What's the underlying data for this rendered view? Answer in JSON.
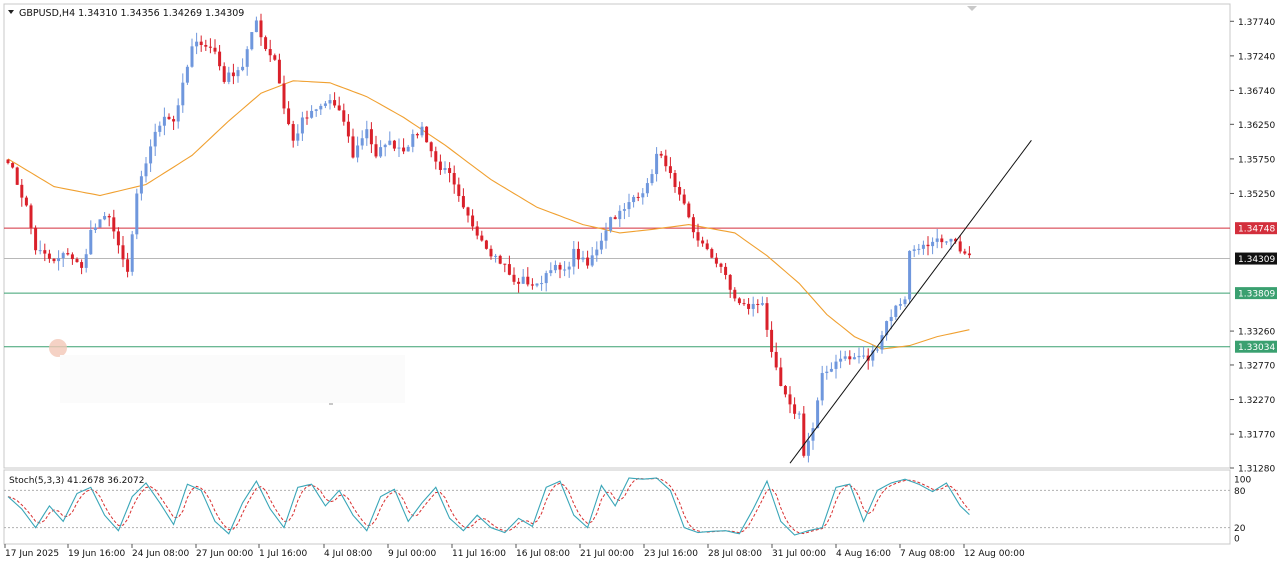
{
  "header": {
    "symbol_text": "GBPUSD,H4  1.34310 1.34356 1.34269 1.34309"
  },
  "colors": {
    "bull": "#6f97dd",
    "bear": "#d9202a",
    "ma": "#f0a030",
    "resistance": "#d32f3c",
    "support": "#3aa070",
    "current": "#b8b8b8",
    "stoch_main": "#3aa6b8",
    "stoch_signal": "#d83030"
  },
  "chart_data": [
    {
      "type": "candlestick",
      "symbol": "GBPUSD",
      "timeframe": "H4",
      "ohlc_header": {
        "open": 1.3431,
        "high": 1.34356,
        "low": 1.34269,
        "close": 1.34309
      },
      "ylim": [
        1.3128,
        1.3799
      ],
      "y_ticks": [
        "1.37740",
        "1.37240",
        "1.36740",
        "1.36250",
        "1.35750",
        "1.35250",
        "1.34748",
        "1.34309",
        "1.33809",
        "1.33260",
        "1.33034",
        "1.32770",
        "1.32270",
        "1.31770",
        "1.31280"
      ],
      "x_ticks": [
        "17 Jun 2025",
        "19 Jun 16:00",
        "24 Jun 08:00",
        "27 Jun 00:00",
        "1 Jul 16:00",
        "4 Jul 08:00",
        "9 Jul 00:00",
        "11 Jul 16:00",
        "16 Jul 08:00",
        "21 Jul 00:00",
        "23 Jul 16:00",
        "28 Jul 08:00",
        "31 Jul 00:00",
        "4 Aug 16:00",
        "7 Aug 08:00",
        "12 Aug 00:00"
      ],
      "price_levels": [
        {
          "label": "1.34748",
          "value": 1.34748,
          "kind": "resistance"
        },
        {
          "label": "1.34309",
          "value": 1.34309,
          "kind": "current"
        },
        {
          "label": "1.33809",
          "value": 1.33809,
          "kind": "support"
        },
        {
          "label": "1.33034",
          "value": 1.33034,
          "kind": "support"
        }
      ],
      "trendline": {
        "from": {
          "bar": 170,
          "price": 1.3135
        },
        "to": {
          "bar": 209,
          "price": 1.3518
        }
      },
      "moving_average": [
        [
          0,
          1.3575
        ],
        [
          10,
          1.3535
        ],
        [
          20,
          1.3522
        ],
        [
          30,
          1.3538
        ],
        [
          40,
          1.358
        ],
        [
          48,
          1.363
        ],
        [
          55,
          1.367
        ],
        [
          62,
          1.3688
        ],
        [
          70,
          1.3685
        ],
        [
          78,
          1.3665
        ],
        [
          86,
          1.3635
        ],
        [
          95,
          1.3595
        ],
        [
          105,
          1.3545
        ],
        [
          115,
          1.3505
        ],
        [
          125,
          1.348
        ],
        [
          133,
          1.3468
        ],
        [
          140,
          1.3473
        ],
        [
          148,
          1.348
        ],
        [
          158,
          1.3468
        ],
        [
          165,
          1.3435
        ],
        [
          172,
          1.3395
        ],
        [
          178,
          1.335
        ],
        [
          184,
          1.3318
        ],
        [
          190,
          1.33
        ],
        [
          196,
          1.3305
        ],
        [
          202,
          1.3318
        ],
        [
          209,
          1.3328
        ]
      ],
      "stoch_label": "Stoch(5,3,3) 41.2678 36.2072",
      "stoch_ticks": [
        "100",
        "80",
        "20",
        "0"
      ],
      "stoch_main_anchors": [
        [
          0,
          70
        ],
        [
          3,
          50
        ],
        [
          6,
          20
        ],
        [
          9,
          55
        ],
        [
          12,
          30
        ],
        [
          15,
          75
        ],
        [
          18,
          85
        ],
        [
          21,
          40
        ],
        [
          24,
          15
        ],
        [
          27,
          70
        ],
        [
          30,
          92
        ],
        [
          33,
          60
        ],
        [
          36,
          25
        ],
        [
          39,
          90
        ],
        [
          42,
          80
        ],
        [
          45,
          30
        ],
        [
          48,
          10
        ],
        [
          51,
          60
        ],
        [
          54,
          95
        ],
        [
          57,
          50
        ],
        [
          60,
          20
        ],
        [
          63,
          85
        ],
        [
          66,
          90
        ],
        [
          69,
          55
        ],
        [
          72,
          80
        ],
        [
          75,
          40
        ],
        [
          78,
          15
        ],
        [
          81,
          70
        ],
        [
          84,
          82
        ],
        [
          87,
          30
        ],
        [
          90,
          60
        ],
        [
          93,
          85
        ],
        [
          96,
          35
        ],
        [
          99,
          15
        ],
        [
          102,
          40
        ],
        [
          105,
          20
        ],
        [
          108,
          12
        ],
        [
          111,
          35
        ],
        [
          114,
          22
        ],
        [
          117,
          85
        ],
        [
          120,
          95
        ],
        [
          123,
          40
        ],
        [
          126,
          20
        ],
        [
          129,
          88
        ],
        [
          132,
          55
        ],
        [
          135,
          100
        ],
        [
          138,
          98
        ],
        [
          141,
          100
        ],
        [
          144,
          80
        ],
        [
          147,
          20
        ],
        [
          150,
          12
        ],
        [
          153,
          14
        ],
        [
          156,
          15
        ],
        [
          159,
          10
        ],
        [
          162,
          50
        ],
        [
          165,
          95
        ],
        [
          168,
          30
        ],
        [
          171,
          8
        ],
        [
          174,
          15
        ],
        [
          177,
          20
        ],
        [
          180,
          85
        ],
        [
          183,
          90
        ],
        [
          186,
          30
        ],
        [
          189,
          80
        ],
        [
          192,
          92
        ],
        [
          195,
          98
        ],
        [
          198,
          90
        ],
        [
          201,
          78
        ],
        [
          204,
          92
        ],
        [
          207,
          55
        ],
        [
          209,
          41
        ]
      ]
    }
  ]
}
